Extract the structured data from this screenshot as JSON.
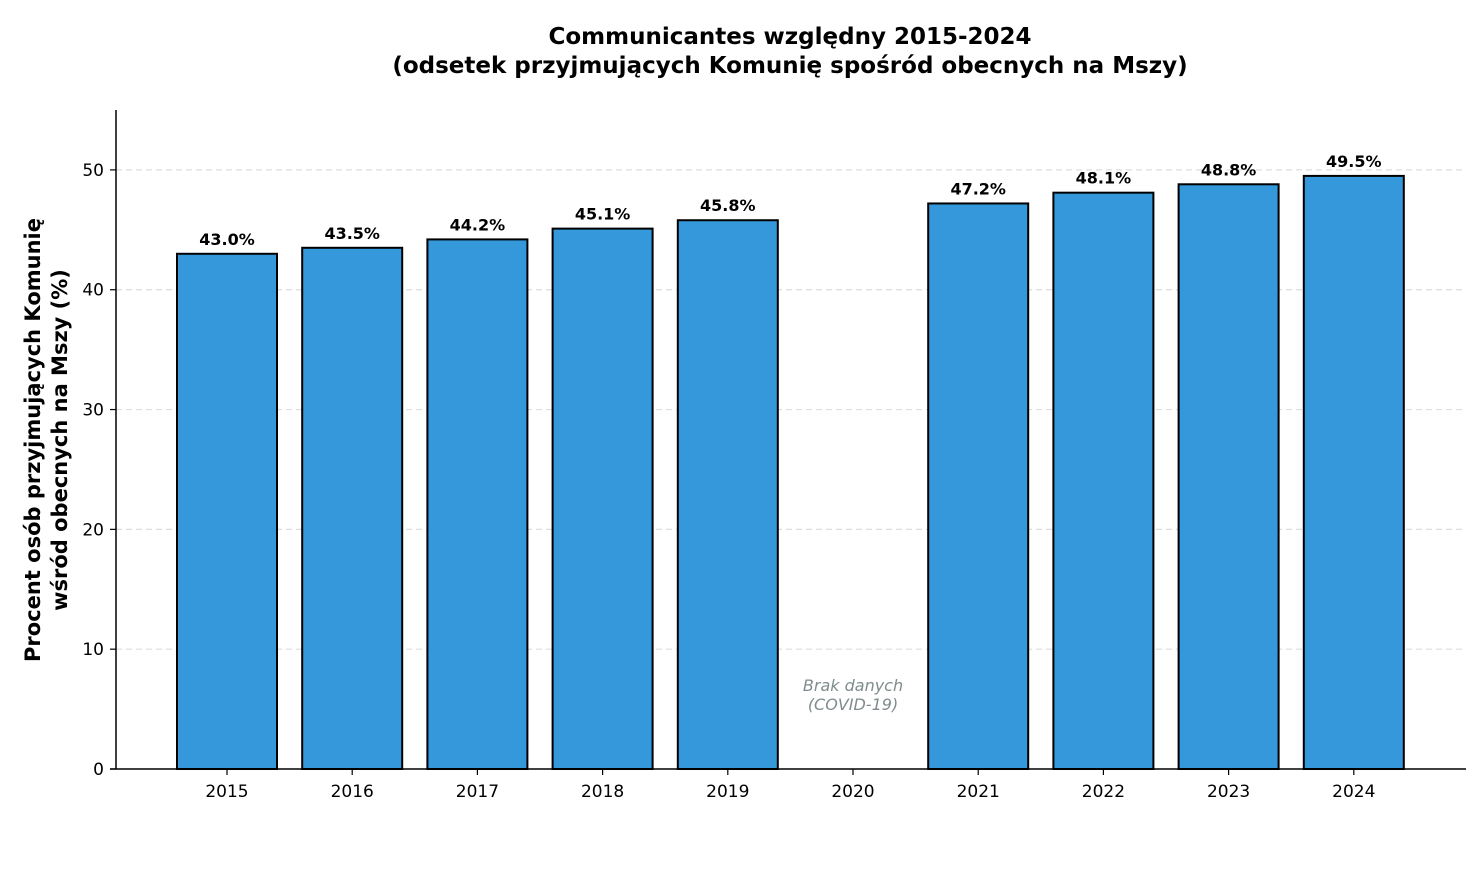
{
  "chart_data": {
    "type": "bar",
    "title": "Communicantes względny 2015-2024",
    "subtitle": "(odsetek przyjmujących Komunię spośród obecnych na Mszy)",
    "xlabel": "",
    "ylabel_line1": "Procent osób przyjmujących Komunię",
    "ylabel_line2": "wśród obecnych na Mszy (%)",
    "categories": [
      "2015",
      "2016",
      "2017",
      "2018",
      "2019",
      "2020",
      "2021",
      "2022",
      "2023",
      "2024"
    ],
    "values": [
      43.0,
      43.5,
      44.2,
      45.1,
      45.8,
      0,
      47.2,
      48.1,
      48.8,
      49.5
    ],
    "value_labels": [
      "43.0%",
      "43.5%",
      "44.2%",
      "45.1%",
      "45.8%",
      "",
      "47.2%",
      "48.1%",
      "48.8%",
      "49.5%"
    ],
    "missing_note_line1": "Brak danych",
    "missing_note_line2": "(COVID-19)",
    "missing_category": "2020",
    "ylim": [
      0,
      55
    ],
    "yticks": [
      0,
      10,
      20,
      30,
      40,
      50
    ],
    "grid": true,
    "colors": {
      "bar_fill": "#3498db",
      "bar_edge": "#000000",
      "grid": "#dddddd",
      "missing_note": "#7f8c8d"
    }
  }
}
